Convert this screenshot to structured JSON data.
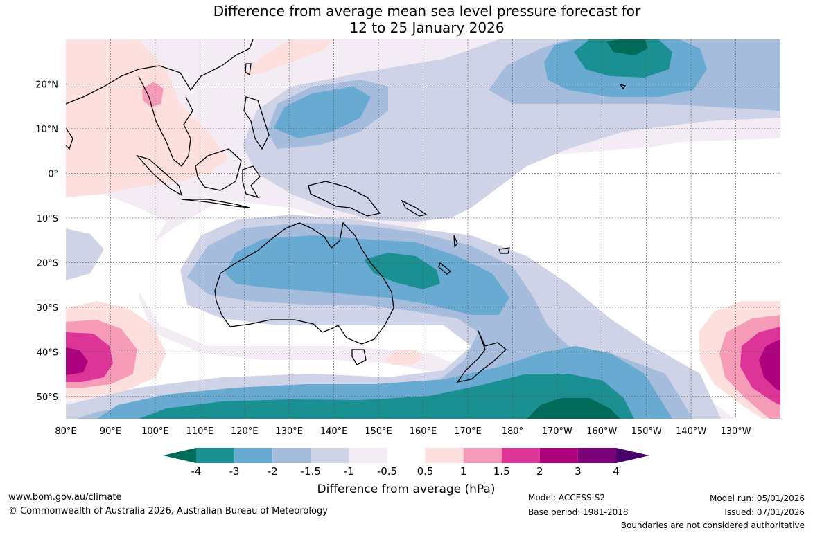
{
  "title": {
    "line1": "Difference from average mean sea level pressure forecast for",
    "line2": "12 to 25 January 2026"
  },
  "map": {
    "lat_labels": [
      "20°N",
      "10°N",
      "0°",
      "10°S",
      "20°S",
      "30°S",
      "40°S",
      "50°S"
    ],
    "lon_labels": [
      "80°E",
      "90°E",
      "100°E",
      "110°E",
      "120°E",
      "130°E",
      "140°E",
      "150°E",
      "160°E",
      "170°E",
      "180°",
      "170°W",
      "160°W",
      "150°W",
      "140°W",
      "130°W"
    ],
    "lon_range": [
      80,
      240
    ],
    "lat_range": [
      -55,
      30
    ],
    "features": {
      "low_tropical_nw_pacific": "-1.5 to -3 hPa",
      "low_north_central_pacific": "-3 to -4 hPa",
      "low_australia": "-1.5 to -3 hPa",
      "low_southern_ocean": "-3 to -4 hPa",
      "high_southern_indian_ocean": "+1 to +3 hPa",
      "high_southeast_pacific": "+1 to +3 hPa",
      "high_maritime_continent": "+0.5 to +1 hPa"
    }
  },
  "colorbar": {
    "labels": [
      "-4",
      "-3",
      "-2",
      "-1.5",
      "-1",
      "-0.5",
      "0.5",
      "1",
      "1.5",
      "2",
      "3",
      "4"
    ],
    "colors": [
      "#1a9092",
      "#68aad2",
      "#a6bcdc",
      "#cfd3e8",
      "#f3ecf4",
      "#ffffff",
      "#fde0dd",
      "#f79cb8",
      "#dd3497",
      "#ae017e",
      "#7a0177"
    ],
    "low_extend_color": "#006b58",
    "high_extend_color": "#49006a",
    "title": "Difference from average (hPa)"
  },
  "footer": {
    "website": "www.bom.gov.au/climate",
    "copyright": "© Commonwealth of Australia 2026, Australian Bureau of Meteorology",
    "model": "Model: ACCESS-S2",
    "base_period": "Base period: 1981-2018",
    "model_run": "Model run: 05/01/2026",
    "issued": "Issued: 07/01/2026",
    "disclaimer": "Boundaries are not considered authoritative"
  }
}
